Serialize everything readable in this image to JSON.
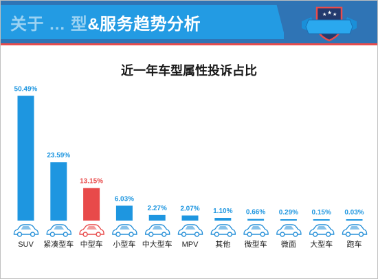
{
  "header": {
    "title_obscured": "关于 … 型",
    "title": "&服务趋势分析"
  },
  "colors": {
    "bar": "#1e96e0",
    "highlight": "#e84a4a",
    "label": "#1e96e0",
    "highlight_label": "#e84a4a",
    "car": "#2790d8",
    "highlight_car": "#e84a4a"
  },
  "chart_data": {
    "type": "bar",
    "title": "近一年车型属性投诉占比",
    "categories": [
      "SUV",
      "紧凑型车",
      "中型车",
      "小型车",
      "中大型车",
      "MPV",
      "其他",
      "微型车",
      "微面",
      "大型车",
      "跑车"
    ],
    "values": [
      50.49,
      23.59,
      13.15,
      6.03,
      2.27,
      2.07,
      1.1,
      0.66,
      0.29,
      0.15,
      0.03
    ],
    "value_labels": [
      "50.49%",
      "23.59%",
      "13.15%",
      "6.03%",
      "2.27%",
      "2.07%",
      "1.10%",
      "0.66%",
      "0.29%",
      "0.15%",
      "0.03%"
    ],
    "highlight_index": 2,
    "ylim": [
      0,
      52
    ],
    "grid": false,
    "legend": "none"
  }
}
